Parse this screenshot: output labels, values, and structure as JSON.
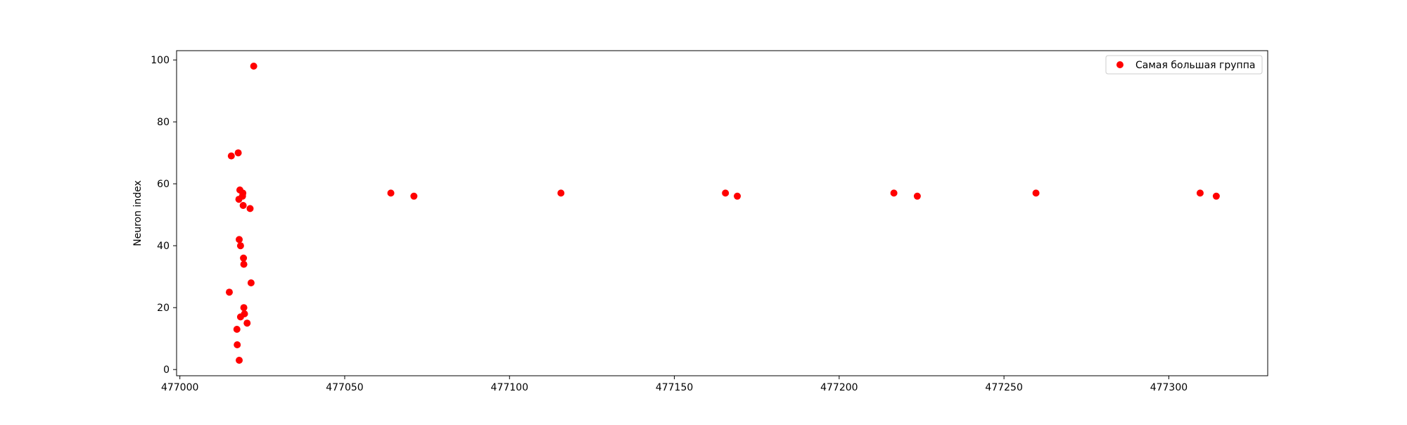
{
  "chart_data": {
    "type": "scatter",
    "title": "",
    "xlabel": "",
    "ylabel": "Neuron index",
    "xlim": [
      476999,
      477330
    ],
    "ylim": [
      -2,
      103
    ],
    "xticks": [
      477000,
      477050,
      477100,
      477150,
      477200,
      477250,
      477300
    ],
    "yticks": [
      0,
      20,
      40,
      60,
      80,
      100
    ],
    "grid": false,
    "legend": {
      "placement": "top-right"
    },
    "series": [
      {
        "name": "Самая большая группа",
        "color": "#ff0000",
        "points": [
          {
            "x": 477015.0,
            "y": 25
          },
          {
            "x": 477015.6,
            "y": 69
          },
          {
            "x": 477017.3,
            "y": 13
          },
          {
            "x": 477017.4,
            "y": 8
          },
          {
            "x": 477017.7,
            "y": 70
          },
          {
            "x": 477017.9,
            "y": 55
          },
          {
            "x": 477018.0,
            "y": 3
          },
          {
            "x": 477018.0,
            "y": 42
          },
          {
            "x": 477018.2,
            "y": 58
          },
          {
            "x": 477018.4,
            "y": 40
          },
          {
            "x": 477018.4,
            "y": 17
          },
          {
            "x": 477019.0,
            "y": 56
          },
          {
            "x": 477019.1,
            "y": 57
          },
          {
            "x": 477019.2,
            "y": 53
          },
          {
            "x": 477019.3,
            "y": 36
          },
          {
            "x": 477019.4,
            "y": 34
          },
          {
            "x": 477019.4,
            "y": 20
          },
          {
            "x": 477019.6,
            "y": 18
          },
          {
            "x": 477020.4,
            "y": 15
          },
          {
            "x": 477021.3,
            "y": 52
          },
          {
            "x": 477021.6,
            "y": 28
          },
          {
            "x": 477022.4,
            "y": 98
          },
          {
            "x": 477064.0,
            "y": 57
          },
          {
            "x": 477071.0,
            "y": 56
          },
          {
            "x": 477115.6,
            "y": 57
          },
          {
            "x": 477165.5,
            "y": 57
          },
          {
            "x": 477169.1,
            "y": 56
          },
          {
            "x": 477216.6,
            "y": 57
          },
          {
            "x": 477223.7,
            "y": 56
          },
          {
            "x": 477259.7,
            "y": 57
          },
          {
            "x": 477309.5,
            "y": 57
          },
          {
            "x": 477314.4,
            "y": 56
          }
        ]
      }
    ]
  }
}
